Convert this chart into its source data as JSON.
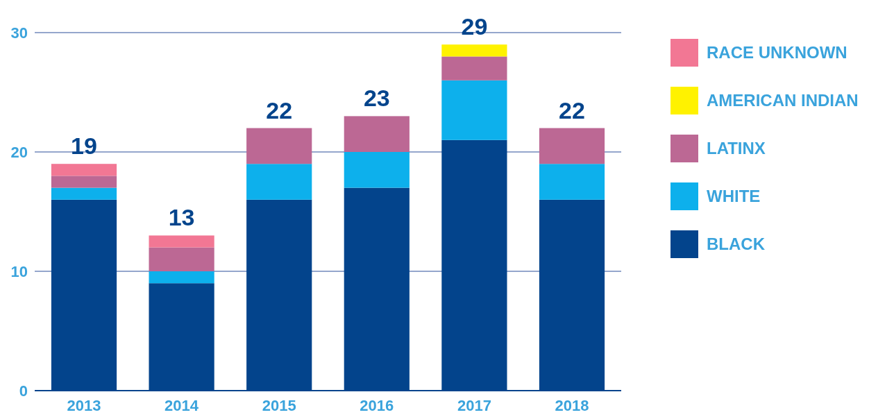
{
  "chart_data": {
    "type": "bar",
    "stacked": true,
    "categories": [
      "2013",
      "2014",
      "2015",
      "2016",
      "2017",
      "2018"
    ],
    "series": [
      {
        "name": "BLACK",
        "color": "#03448c",
        "values": [
          16,
          9,
          16,
          17,
          21,
          16
        ]
      },
      {
        "name": "WHITE",
        "color": "#0db0ec",
        "values": [
          1,
          1,
          3,
          3,
          5,
          3
        ]
      },
      {
        "name": "LATINX",
        "color": "#bc6894",
        "values": [
          1,
          2,
          3,
          3,
          2,
          3
        ]
      },
      {
        "name": "AMERICAN INDIAN",
        "color": "#fff200",
        "values": [
          0,
          0,
          0,
          0,
          1,
          0
        ]
      },
      {
        "name": "RACE UNKNOWN",
        "color": "#f27794",
        "values": [
          1,
          1,
          0,
          0,
          0,
          0
        ]
      }
    ],
    "ylim": [
      0,
      30
    ],
    "yticks": [
      0,
      10,
      20,
      30
    ],
    "grid": "y",
    "legend": "right",
    "totals": [
      "19",
      "13",
      "22",
      "23",
      "29",
      "22"
    ]
  }
}
